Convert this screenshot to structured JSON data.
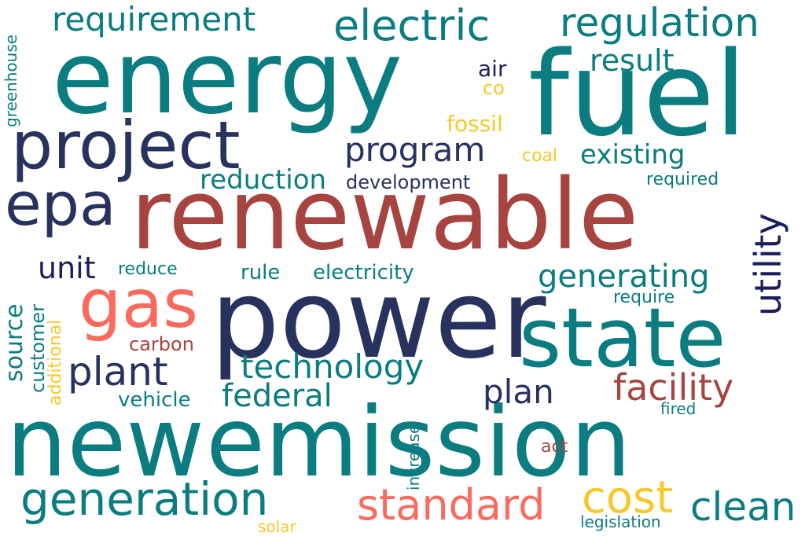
{
  "palette": {
    "teal": "#0b7d80",
    "navy": "#27325f",
    "dark_navy": "#1a1f5c",
    "red_brown": "#a7443f",
    "coral": "#fb6a5e",
    "gold": "#f7c82a"
  },
  "words": [
    {
      "text": "energy",
      "color": "teal"
    },
    {
      "text": "fuel",
      "color": "teal"
    },
    {
      "text": "renewable",
      "color": "red_brown"
    },
    {
      "text": "power",
      "color": "navy"
    },
    {
      "text": "state",
      "color": "teal"
    },
    {
      "text": "new",
      "color": "teal"
    },
    {
      "text": "emission",
      "color": "teal"
    },
    {
      "text": "project",
      "color": "navy"
    },
    {
      "text": "gas",
      "color": "coral"
    },
    {
      "text": "epa",
      "color": "navy"
    },
    {
      "text": "electric",
      "color": "teal"
    },
    {
      "text": "regulation",
      "color": "teal"
    },
    {
      "text": "requirement",
      "color": "teal"
    },
    {
      "text": "program",
      "color": "navy"
    },
    {
      "text": "result",
      "color": "teal"
    },
    {
      "text": "utility",
      "color": "dark_navy"
    },
    {
      "text": "generating",
      "color": "teal"
    },
    {
      "text": "facility",
      "color": "red_brown"
    },
    {
      "text": "technology",
      "color": "teal"
    },
    {
      "text": "plant",
      "color": "navy"
    },
    {
      "text": "federal",
      "color": "teal"
    },
    {
      "text": "plan",
      "color": "navy"
    },
    {
      "text": "generation",
      "color": "teal"
    },
    {
      "text": "standard",
      "color": "coral"
    },
    {
      "text": "cost",
      "color": "gold"
    },
    {
      "text": "clean",
      "color": "teal"
    },
    {
      "text": "unit",
      "color": "dark_navy"
    },
    {
      "text": "source",
      "color": "teal"
    },
    {
      "text": "customer",
      "color": "teal"
    },
    {
      "text": "additional",
      "color": "gold"
    },
    {
      "text": "reduction",
      "color": "teal"
    },
    {
      "text": "development",
      "color": "navy"
    },
    {
      "text": "existing",
      "color": "teal"
    },
    {
      "text": "air",
      "color": "dark_navy"
    },
    {
      "text": "co",
      "color": "gold"
    },
    {
      "text": "fossil",
      "color": "gold"
    },
    {
      "text": "coal",
      "color": "gold"
    },
    {
      "text": "required",
      "color": "teal"
    },
    {
      "text": "greenhouse",
      "color": "teal"
    },
    {
      "text": "reduce",
      "color": "teal"
    },
    {
      "text": "rule",
      "color": "teal"
    },
    {
      "text": "electricity",
      "color": "teal"
    },
    {
      "text": "require",
      "color": "teal"
    },
    {
      "text": "carbon",
      "color": "red_brown"
    },
    {
      "text": "vehicle",
      "color": "teal"
    },
    {
      "text": "fired",
      "color": "teal"
    },
    {
      "text": "increase",
      "color": "teal"
    },
    {
      "text": "act",
      "color": "red_brown"
    },
    {
      "text": "solar",
      "color": "gold"
    },
    {
      "text": "legislation",
      "color": "teal"
    }
  ]
}
